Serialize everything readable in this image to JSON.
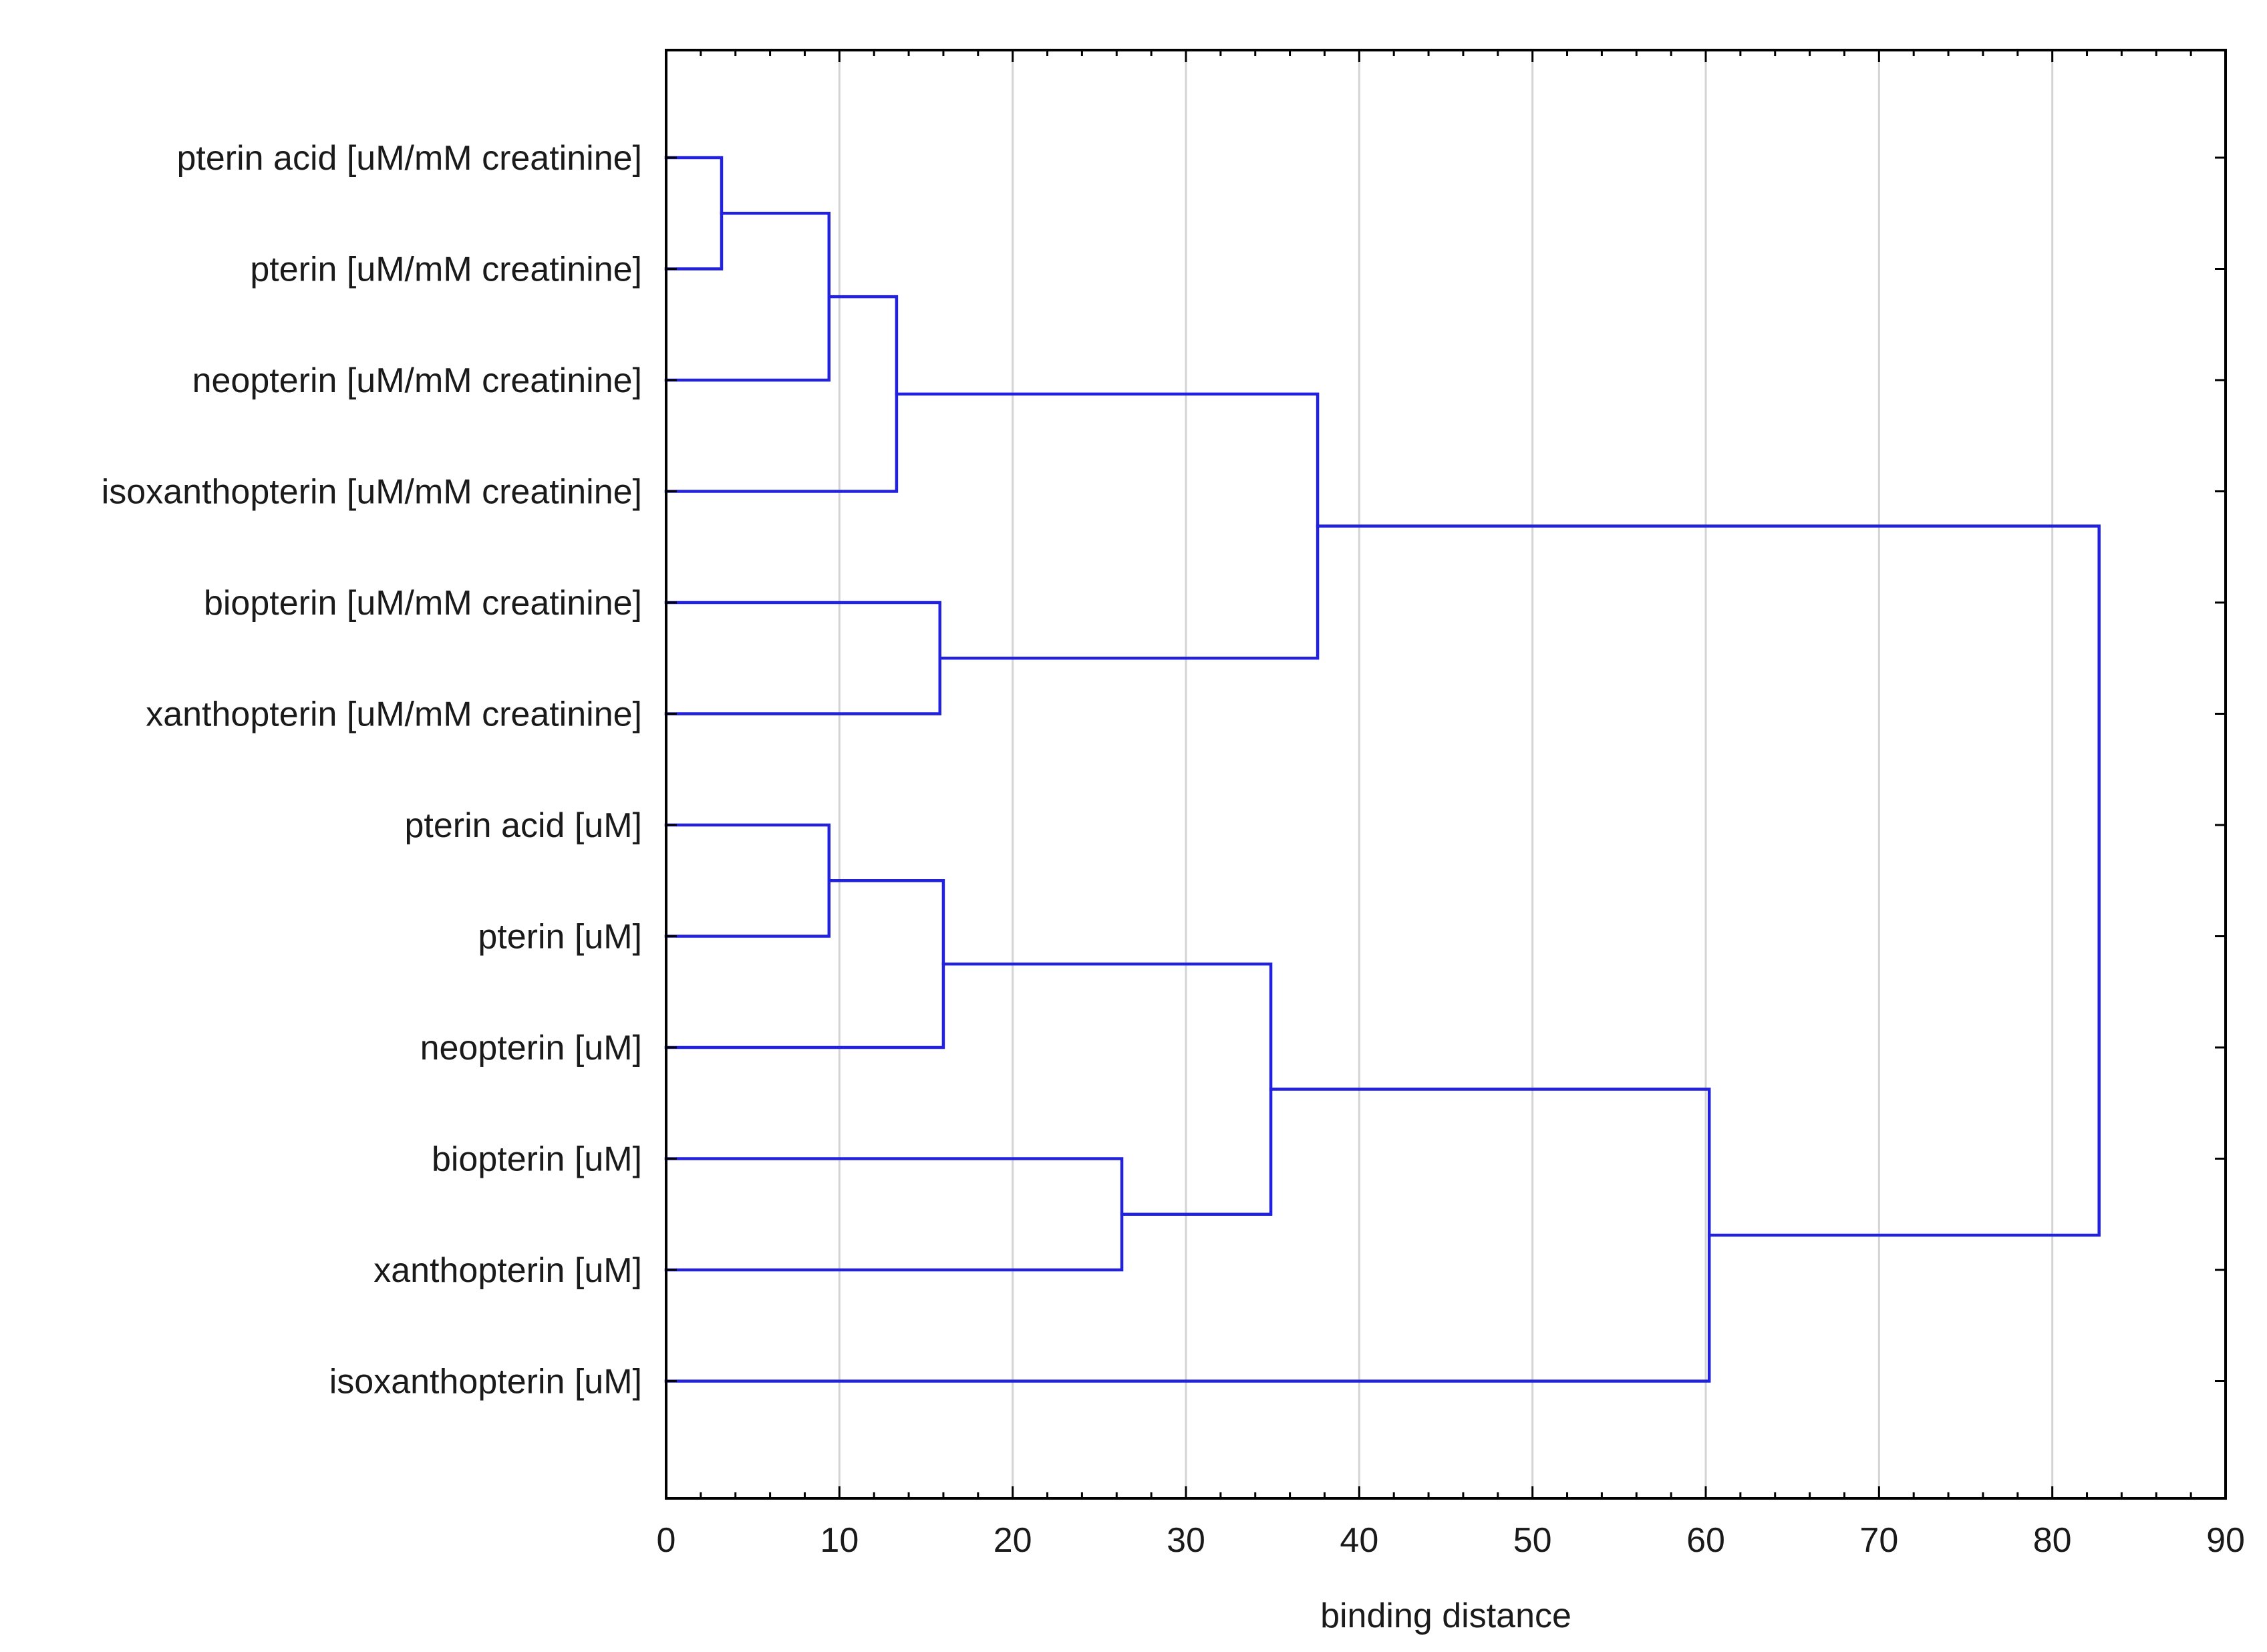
{
  "chart_data": {
    "type": "dendrogram",
    "title": "",
    "xlabel": "binding distance",
    "ylabel": "",
    "xlim": [
      0,
      90
    ],
    "x_ticks": [
      0,
      10,
      20,
      30,
      40,
      50,
      60,
      70,
      80,
      90
    ],
    "grid": "vertical",
    "line_color": "#2222dd",
    "leaves": [
      "pterin acid [uM/mM creatinine]",
      "pterin [uM/mM creatinine]",
      "neopterin [uM/mM creatinine]",
      "isoxanthopterin [uM/mM creatinine]",
      "biopterin [uM/mM creatinine]",
      "xanthopterin [uM/mM creatinine]",
      "pterin acid [uM]",
      "pterin [uM]",
      "neopterin [uM]",
      "biopterin [uM]",
      "xanthopterin [uM]",
      "isoxanthopterin [uM]"
    ],
    "merges": [
      {
        "id": "c1",
        "children": [
          "0",
          "1"
        ],
        "distance": 3.2
      },
      {
        "id": "c2",
        "children": [
          "c1",
          "2"
        ],
        "distance": 9.4
      },
      {
        "id": "c3",
        "children": [
          "c2",
          "3"
        ],
        "distance": 13.3
      },
      {
        "id": "c4",
        "children": [
          "4",
          "5"
        ],
        "distance": 15.8
      },
      {
        "id": "c5",
        "children": [
          "c3",
          "c4"
        ],
        "distance": 37.6
      },
      {
        "id": "c6",
        "children": [
          "6",
          "7"
        ],
        "distance": 9.4
      },
      {
        "id": "c7",
        "children": [
          "c6",
          "8"
        ],
        "distance": 16.0
      },
      {
        "id": "c8",
        "children": [
          "9",
          "10"
        ],
        "distance": 26.3
      },
      {
        "id": "c9",
        "children": [
          "c7",
          "c8"
        ],
        "distance": 34.9
      },
      {
        "id": "c10",
        "children": [
          "c9",
          "11"
        ],
        "distance": 60.2
      },
      {
        "id": "c11",
        "children": [
          "c5",
          "c10"
        ],
        "distance": 82.7
      }
    ]
  }
}
